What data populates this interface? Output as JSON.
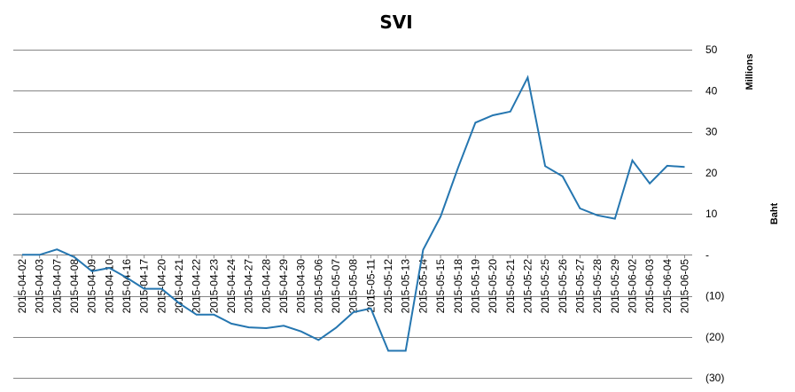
{
  "chart_data": {
    "type": "line",
    "title": "SVI",
    "unit_label": "Millions",
    "ylabel": "Baht",
    "y_axis_side": "right",
    "ylim": [
      -30,
      50
    ],
    "grid": true,
    "line_color": "#2576B0",
    "yticks": [
      {
        "value": 50,
        "label": "50"
      },
      {
        "value": 40,
        "label": "40"
      },
      {
        "value": 30,
        "label": "30"
      },
      {
        "value": 20,
        "label": "20"
      },
      {
        "value": 10,
        "label": "10"
      },
      {
        "value": 0,
        "label": "-"
      },
      {
        "value": -10,
        "label": "(10)"
      },
      {
        "value": -20,
        "label": "(20)"
      },
      {
        "value": -30,
        "label": "(30)"
      }
    ],
    "categories": [
      "2015-04-02",
      "2015-04-03",
      "2015-04-07",
      "2015-04-08",
      "2015-04-09",
      "2015-04-10",
      "2015-04-16",
      "2015-04-17",
      "2015-04-20",
      "2015-04-21",
      "2015-04-22",
      "2015-04-23",
      "2015-04-24",
      "2015-04-27",
      "2015-04-28",
      "2015-04-29",
      "2015-04-30",
      "2015-05-06",
      "2015-05-07",
      "2015-05-08",
      "2015-05-11",
      "2015-05-12",
      "2015-05-13",
      "2015-05-14",
      "2015-05-15",
      "2015-05-18",
      "2015-05-19",
      "2015-05-20",
      "2015-05-21",
      "2015-05-22",
      "2015-05-25",
      "2015-05-26",
      "2015-05-27",
      "2015-05-28",
      "2015-05-29",
      "2015-06-02",
      "2015-06-03",
      "2015-06-04",
      "2015-06-05"
    ],
    "series": [
      {
        "values": [
          0,
          0,
          1.3,
          -0.6,
          -4,
          -3.2,
          -5.6,
          -8.3,
          -8.3,
          -11.8,
          -14.6,
          -14.6,
          -16.8,
          -17.7,
          -17.9,
          -17.3,
          -18.7,
          -20.8,
          -17.8,
          -14,
          -13.1,
          -23.4,
          -23.4,
          1.2,
          9.3,
          21.2,
          32.2,
          34,
          34.9,
          43.2,
          21.6,
          19.1,
          11.3,
          9.6,
          8.8,
          23,
          17.4,
          21.7,
          21.4
        ]
      }
    ]
  }
}
